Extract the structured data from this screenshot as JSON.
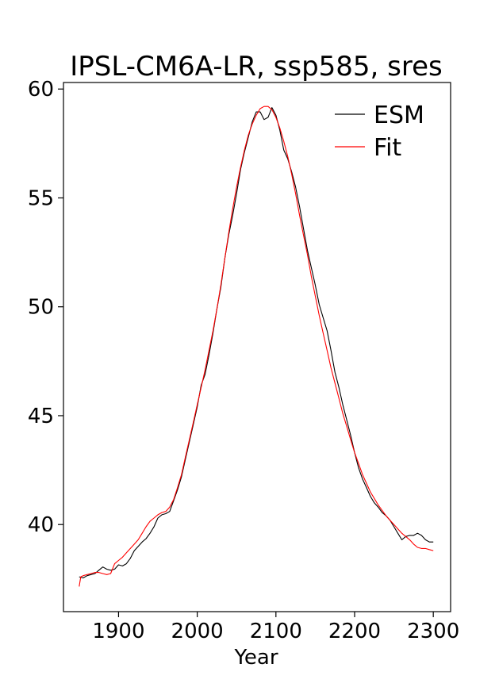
{
  "chart_data": {
    "type": "line",
    "title": "IPSL-CM6A-LR, ssp585, sres",
    "xlabel": "Year",
    "ylabel": "",
    "xlim": [
      1830,
      2322
    ],
    "ylim": [
      36.0,
      60.3
    ],
    "xticks": [
      1900,
      2000,
      2100,
      2200,
      2300
    ],
    "yticks": [
      40,
      45,
      50,
      55,
      60
    ],
    "legend": {
      "placement": "top-right",
      "entries": [
        "ESM",
        "Fit"
      ]
    },
    "grid": false,
    "series": [
      {
        "name": "ESM",
        "color": "#000000",
        "x": [
          1850,
          1855,
          1860,
          1865,
          1870,
          1875,
          1880,
          1885,
          1890,
          1895,
          1900,
          1905,
          1910,
          1915,
          1920,
          1925,
          1930,
          1935,
          1940,
          1945,
          1950,
          1955,
          1960,
          1965,
          1970,
          1975,
          1980,
          1985,
          1990,
          1995,
          2000,
          2005,
          2010,
          2015,
          2020,
          2025,
          2030,
          2035,
          2040,
          2045,
          2050,
          2055,
          2060,
          2065,
          2070,
          2075,
          2080,
          2085,
          2090,
          2095,
          2100,
          2105,
          2110,
          2115,
          2120,
          2125,
          2130,
          2135,
          2140,
          2145,
          2150,
          2155,
          2160,
          2165,
          2170,
          2175,
          2180,
          2185,
          2190,
          2195,
          2200,
          2205,
          2210,
          2215,
          2220,
          2225,
          2230,
          2235,
          2240,
          2245,
          2250,
          2255,
          2260,
          2265,
          2270,
          2275,
          2280,
          2285,
          2290,
          2295,
          2300
        ],
        "values": [
          37.6,
          37.55,
          37.65,
          37.7,
          37.75,
          37.9,
          38.05,
          37.95,
          37.9,
          37.95,
          38.15,
          38.1,
          38.2,
          38.45,
          38.8,
          39.0,
          39.2,
          39.35,
          39.6,
          39.9,
          40.3,
          40.45,
          40.5,
          40.6,
          41.1,
          41.6,
          42.2,
          43.0,
          43.8,
          44.6,
          45.4,
          46.4,
          46.9,
          47.8,
          48.8,
          49.9,
          50.9,
          52.2,
          53.3,
          54.2,
          55.2,
          56.3,
          57.1,
          57.8,
          58.5,
          58.95,
          58.95,
          58.6,
          58.7,
          59.15,
          58.8,
          58.1,
          57.2,
          56.8,
          56.2,
          55.5,
          54.6,
          53.6,
          52.6,
          51.8,
          51.0,
          50.1,
          49.5,
          48.9,
          48.0,
          47.0,
          46.3,
          45.5,
          44.8,
          44.1,
          43.3,
          42.6,
          42.1,
          41.7,
          41.3,
          41.0,
          40.8,
          40.55,
          40.4,
          40.2,
          39.9,
          39.6,
          39.3,
          39.45,
          39.5,
          39.5,
          39.6,
          39.5,
          39.3,
          39.2,
          39.2
        ]
      },
      {
        "name": "Fit",
        "color": "#ff0000",
        "x": [
          1850,
          1852,
          1855,
          1860,
          1865,
          1870,
          1875,
          1880,
          1885,
          1890,
          1895,
          1900,
          1905,
          1910,
          1915,
          1920,
          1925,
          1930,
          1935,
          1940,
          1945,
          1950,
          1955,
          1960,
          1965,
          1970,
          1975,
          1980,
          1985,
          1990,
          1995,
          2000,
          2005,
          2010,
          2015,
          2020,
          2025,
          2030,
          2035,
          2040,
          2045,
          2050,
          2055,
          2060,
          2065,
          2070,
          2075,
          2080,
          2085,
          2090,
          2095,
          2100,
          2105,
          2110,
          2115,
          2120,
          2125,
          2130,
          2135,
          2140,
          2145,
          2150,
          2155,
          2160,
          2165,
          2170,
          2175,
          2180,
          2185,
          2190,
          2195,
          2200,
          2205,
          2210,
          2215,
          2220,
          2225,
          2230,
          2235,
          2240,
          2245,
          2250,
          2255,
          2260,
          2265,
          2270,
          2275,
          2280,
          2285,
          2290,
          2295,
          2300
        ],
        "values": [
          37.15,
          37.6,
          37.65,
          37.7,
          37.75,
          37.8,
          37.8,
          37.75,
          37.7,
          37.75,
          38.2,
          38.35,
          38.5,
          38.7,
          38.9,
          39.1,
          39.3,
          39.6,
          39.9,
          40.15,
          40.3,
          40.45,
          40.55,
          40.6,
          40.8,
          41.15,
          41.7,
          42.3,
          43.1,
          43.9,
          44.7,
          45.5,
          46.3,
          47.1,
          48.0,
          48.9,
          49.9,
          51.0,
          52.2,
          53.4,
          54.5,
          55.5,
          56.4,
          57.2,
          57.9,
          58.4,
          58.8,
          59.1,
          59.2,
          59.2,
          59.05,
          58.7,
          58.2,
          57.6,
          56.9,
          56.1,
          55.2,
          54.2,
          53.3,
          52.4,
          51.4,
          50.5,
          49.6,
          48.8,
          48.0,
          47.2,
          46.5,
          45.8,
          45.1,
          44.5,
          43.9,
          43.3,
          42.8,
          42.3,
          41.9,
          41.5,
          41.2,
          40.9,
          40.65,
          40.4,
          40.2,
          40.0,
          39.8,
          39.6,
          39.45,
          39.3,
          39.1,
          38.95,
          38.9,
          38.9,
          38.85,
          38.8
        ]
      }
    ]
  }
}
